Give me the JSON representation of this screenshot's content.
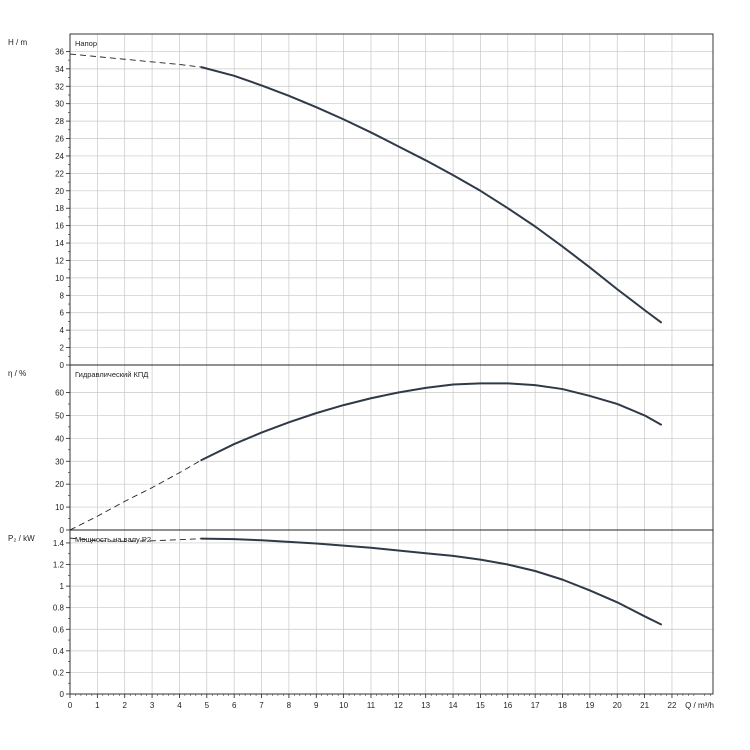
{
  "chart_data": {
    "type": "line",
    "x_axis": {
      "label": "Q / m³/h",
      "range": [
        0,
        23.5
      ],
      "ticks": [
        0,
        1,
        2,
        3,
        4,
        5,
        6,
        7,
        8,
        9,
        10,
        11,
        12,
        13,
        14,
        15,
        16,
        17,
        18,
        19,
        20,
        21,
        22
      ]
    },
    "panels": [
      {
        "id": "head",
        "title": "Напор",
        "ylabel": "H / m",
        "ylim": [
          0,
          38
        ],
        "yticks": [
          0,
          2,
          4,
          6,
          8,
          10,
          12,
          14,
          16,
          18,
          20,
          22,
          24,
          26,
          28,
          30,
          32,
          34,
          36
        ],
        "dashed": {
          "x": [
            0,
            2,
            4,
            4.8
          ],
          "y": [
            35.7,
            35.1,
            34.5,
            34.2
          ]
        },
        "solid": {
          "x": [
            4.8,
            6,
            7,
            8,
            9,
            10,
            11,
            12,
            13,
            14,
            15,
            16,
            17,
            18,
            19,
            20,
            21,
            21.6
          ],
          "y": [
            34.2,
            33.2,
            32.1,
            30.9,
            29.6,
            28.2,
            26.7,
            25.1,
            23.5,
            21.8,
            20.0,
            18.0,
            15.9,
            13.6,
            11.2,
            8.7,
            6.3,
            4.9
          ]
        }
      },
      {
        "id": "efficiency",
        "title": "Гидравлический КПД",
        "ylabel": "η / %",
        "ylim": [
          0,
          72
        ],
        "yticks": [
          0,
          10,
          20,
          30,
          40,
          50,
          60
        ],
        "dashed": {
          "x": [
            0,
            1,
            2,
            3,
            4,
            4.8
          ],
          "y": [
            0,
            6,
            12.5,
            18.5,
            25,
            30.5
          ]
        },
        "solid": {
          "x": [
            4.8,
            6,
            7,
            8,
            9,
            10,
            11,
            12,
            13,
            14,
            15,
            16,
            17,
            18,
            19,
            20,
            21,
            21.6
          ],
          "y": [
            30.5,
            37.5,
            42.5,
            47,
            51,
            54.5,
            57.5,
            60,
            62,
            63.5,
            64,
            64,
            63.2,
            61.5,
            58.5,
            55,
            50,
            46
          ]
        }
      },
      {
        "id": "power",
        "title": "Мощность на валу P2",
        "ylabel": "P₂ / kW",
        "ylim": [
          0,
          1.52
        ],
        "yticks": [
          0,
          0.2,
          0.4,
          0.6,
          0.8,
          1,
          1.2,
          1.4
        ],
        "dashed": {
          "x": [
            0,
            1,
            2,
            3,
            4,
            4.8
          ],
          "y": [
            1.445,
            1.42,
            1.415,
            1.42,
            1.43,
            1.44
          ]
        },
        "solid": {
          "x": [
            4.8,
            6,
            7,
            8,
            9,
            10,
            11,
            12,
            13,
            14,
            15,
            16,
            17,
            18,
            19,
            20,
            21,
            21.6
          ],
          "y": [
            1.44,
            1.435,
            1.425,
            1.41,
            1.395,
            1.375,
            1.355,
            1.33,
            1.305,
            1.28,
            1.245,
            1.2,
            1.14,
            1.06,
            0.96,
            0.85,
            0.72,
            0.645
          ]
        }
      }
    ]
  }
}
